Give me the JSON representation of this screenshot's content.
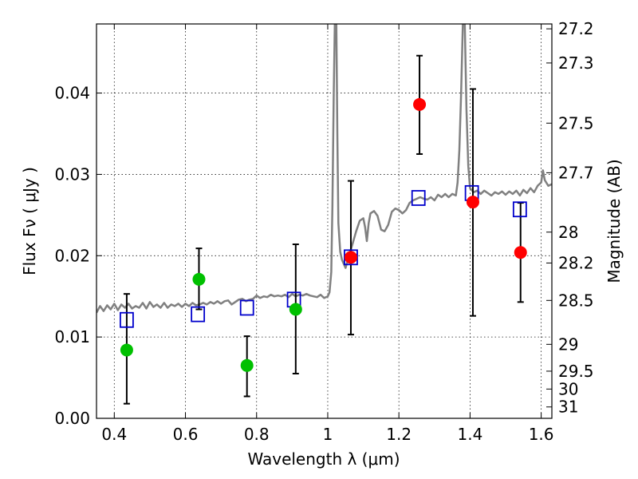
{
  "chart_data": {
    "type": "scatter",
    "xlabel": "Wavelength  λ (μm)",
    "ylabel": "Flux  Fν  ( μJy )",
    "y2label": "Magnitude (AB)",
    "xlim": [
      0.35,
      1.63
    ],
    "ylim": [
      0.0,
      0.0485
    ],
    "x_ticks": [
      0.4,
      0.6,
      0.8,
      1.0,
      1.2,
      1.4,
      1.6
    ],
    "x_tick_labels": [
      "0.4",
      "0.6",
      "0.8",
      "1",
      "1.2",
      "1.4",
      "1.6"
    ],
    "y_ticks": [
      0.0,
      0.01,
      0.02,
      0.03,
      0.04
    ],
    "y_tick_labels": [
      "0.00",
      "0.01",
      "0.02",
      "0.03",
      "0.04"
    ],
    "y2_ticks": [
      {
        "label": "27.2",
        "flux": 0.0479
      },
      {
        "label": "27.3",
        "flux": 0.0437
      },
      {
        "label": "27.5",
        "flux": 0.0363
      },
      {
        "label": "27.7",
        "flux": 0.0302
      },
      {
        "label": "28",
        "flux": 0.0229
      },
      {
        "label": "28.2",
        "flux": 0.0191
      },
      {
        "label": "28.5",
        "flux": 0.0145
      },
      {
        "label": "29",
        "flux": 0.0091
      },
      {
        "label": "29.5",
        "flux": 0.0058
      },
      {
        "label": "30",
        "flux": 0.0036
      },
      {
        "label": "31",
        "flux": 0.0014
      }
    ],
    "grid": true,
    "colors": {
      "spectrum": "#808080",
      "green_points": "#00c000",
      "red_points": "#ff0000",
      "model_boxes": "#0000cc",
      "errorbars": "#000000"
    },
    "model_points": [
      {
        "x": 0.435,
        "y": 0.0121
      },
      {
        "x": 0.635,
        "y": 0.0128
      },
      {
        "x": 0.773,
        "y": 0.0136
      },
      {
        "x": 0.905,
        "y": 0.0146
      },
      {
        "x": 1.065,
        "y": 0.0198
      },
      {
        "x": 1.255,
        "y": 0.0271
      },
      {
        "x": 1.405,
        "y": 0.0277
      },
      {
        "x": 1.54,
        "y": 0.0257
      }
    ],
    "green_points": [
      {
        "x": 0.435,
        "y": 0.0084,
        "yerr_low": 0.0018,
        "yerr_high": 0.0153
      },
      {
        "x": 0.638,
        "y": 0.0171,
        "yerr_low": 0.0134,
        "yerr_high": 0.0209
      },
      {
        "x": 0.773,
        "y": 0.0065,
        "yerr_low": 0.0027,
        "yerr_high": 0.0101
      },
      {
        "x": 0.91,
        "y": 0.0134,
        "yerr_low": 0.0055,
        "yerr_high": 0.0214
      }
    ],
    "red_points": [
      {
        "x": 1.065,
        "y": 0.0198,
        "yerr_low": 0.0103,
        "yerr_high": 0.0292
      },
      {
        "x": 1.258,
        "y": 0.0386,
        "yerr_low": 0.0325,
        "yerr_high": 0.0446
      },
      {
        "x": 1.408,
        "y": 0.0266,
        "yerr_low": 0.0126,
        "yerr_high": 0.0405
      },
      {
        "x": 1.542,
        "y": 0.0204,
        "yerr_low": 0.0143,
        "yerr_high": 0.0265
      }
    ],
    "spectrum": [
      [
        0.35,
        0.013
      ],
      [
        0.36,
        0.0138
      ],
      [
        0.37,
        0.0132
      ],
      [
        0.38,
        0.0139
      ],
      [
        0.39,
        0.0134
      ],
      [
        0.4,
        0.0141
      ],
      [
        0.41,
        0.0133
      ],
      [
        0.42,
        0.014
      ],
      [
        0.43,
        0.0136
      ],
      [
        0.44,
        0.0141
      ],
      [
        0.45,
        0.0135
      ],
      [
        0.46,
        0.0138
      ],
      [
        0.47,
        0.0136
      ],
      [
        0.48,
        0.0142
      ],
      [
        0.49,
        0.0135
      ],
      [
        0.5,
        0.0143
      ],
      [
        0.51,
        0.0137
      ],
      [
        0.52,
        0.014
      ],
      [
        0.53,
        0.0136
      ],
      [
        0.54,
        0.0142
      ],
      [
        0.55,
        0.0136
      ],
      [
        0.56,
        0.014
      ],
      [
        0.57,
        0.0138
      ],
      [
        0.58,
        0.0141
      ],
      [
        0.59,
        0.0137
      ],
      [
        0.6,
        0.0141
      ],
      [
        0.61,
        0.0138
      ],
      [
        0.62,
        0.0142
      ],
      [
        0.63,
        0.0139
      ],
      [
        0.64,
        0.014
      ],
      [
        0.65,
        0.0142
      ],
      [
        0.66,
        0.014
      ],
      [
        0.67,
        0.0143
      ],
      [
        0.68,
        0.0141
      ],
      [
        0.69,
        0.0144
      ],
      [
        0.7,
        0.0141
      ],
      [
        0.71,
        0.0144
      ],
      [
        0.72,
        0.0145
      ],
      [
        0.73,
        0.014
      ],
      [
        0.74,
        0.0143
      ],
      [
        0.75,
        0.0146
      ],
      [
        0.76,
        0.0147
      ],
      [
        0.77,
        0.0144
      ],
      [
        0.78,
        0.0146
      ],
      [
        0.79,
        0.0147
      ],
      [
        0.8,
        0.0151
      ],
      [
        0.81,
        0.0148
      ],
      [
        0.82,
        0.015
      ],
      [
        0.83,
        0.0149
      ],
      [
        0.84,
        0.0152
      ],
      [
        0.85,
        0.015
      ],
      [
        0.86,
        0.0151
      ],
      [
        0.87,
        0.015
      ],
      [
        0.88,
        0.0152
      ],
      [
        0.89,
        0.0149
      ],
      [
        0.9,
        0.0153
      ],
      [
        0.91,
        0.015
      ],
      [
        0.92,
        0.0152
      ],
      [
        0.93,
        0.0151
      ],
      [
        0.94,
        0.0153
      ],
      [
        0.95,
        0.0151
      ],
      [
        0.96,
        0.015
      ],
      [
        0.97,
        0.0149
      ],
      [
        0.98,
        0.0152
      ],
      [
        0.99,
        0.0148
      ],
      [
        1.0,
        0.015
      ],
      [
        1.005,
        0.0155
      ],
      [
        1.01,
        0.018
      ],
      [
        1.013,
        0.026
      ],
      [
        1.017,
        0.04
      ],
      [
        1.02,
        0.049
      ],
      [
        1.024,
        0.049
      ],
      [
        1.027,
        0.035
      ],
      [
        1.03,
        0.024
      ],
      [
        1.035,
        0.0205
      ],
      [
        1.04,
        0.0195
      ],
      [
        1.05,
        0.0185
      ],
      [
        1.06,
        0.02
      ],
      [
        1.07,
        0.0215
      ],
      [
        1.08,
        0.023
      ],
      [
        1.09,
        0.0243
      ],
      [
        1.1,
        0.0246
      ],
      [
        1.105,
        0.0235
      ],
      [
        1.11,
        0.0218
      ],
      [
        1.115,
        0.024
      ],
      [
        1.12,
        0.0252
      ],
      [
        1.13,
        0.0255
      ],
      [
        1.14,
        0.0249
      ],
      [
        1.15,
        0.0232
      ],
      [
        1.16,
        0.023
      ],
      [
        1.17,
        0.0238
      ],
      [
        1.18,
        0.0254
      ],
      [
        1.19,
        0.0258
      ],
      [
        1.2,
        0.0256
      ],
      [
        1.21,
        0.0252
      ],
      [
        1.22,
        0.0256
      ],
      [
        1.23,
        0.0265
      ],
      [
        1.24,
        0.0268
      ],
      [
        1.25,
        0.027
      ],
      [
        1.26,
        0.0272
      ],
      [
        1.27,
        0.027
      ],
      [
        1.28,
        0.0269
      ],
      [
        1.29,
        0.0272
      ],
      [
        1.3,
        0.0268
      ],
      [
        1.31,
        0.0275
      ],
      [
        1.32,
        0.0272
      ],
      [
        1.33,
        0.0276
      ],
      [
        1.34,
        0.0272
      ],
      [
        1.35,
        0.0276
      ],
      [
        1.36,
        0.0274
      ],
      [
        1.365,
        0.029
      ],
      [
        1.37,
        0.033
      ],
      [
        1.375,
        0.04
      ],
      [
        1.38,
        0.049
      ],
      [
        1.385,
        0.049
      ],
      [
        1.39,
        0.038
      ],
      [
        1.395,
        0.031
      ],
      [
        1.4,
        0.0283
      ],
      [
        1.41,
        0.0278
      ],
      [
        1.42,
        0.028
      ],
      [
        1.43,
        0.0276
      ],
      [
        1.44,
        0.028
      ],
      [
        1.45,
        0.0277
      ],
      [
        1.46,
        0.0274
      ],
      [
        1.47,
        0.0278
      ],
      [
        1.48,
        0.0276
      ],
      [
        1.49,
        0.0279
      ],
      [
        1.5,
        0.0275
      ],
      [
        1.51,
        0.0279
      ],
      [
        1.52,
        0.0276
      ],
      [
        1.53,
        0.028
      ],
      [
        1.54,
        0.0274
      ],
      [
        1.55,
        0.0281
      ],
      [
        1.56,
        0.0277
      ],
      [
        1.57,
        0.0283
      ],
      [
        1.58,
        0.0278
      ],
      [
        1.59,
        0.0286
      ],
      [
        1.6,
        0.029
      ],
      [
        1.605,
        0.0305
      ],
      [
        1.61,
        0.0293
      ],
      [
        1.62,
        0.0286
      ],
      [
        1.63,
        0.0288
      ]
    ]
  }
}
